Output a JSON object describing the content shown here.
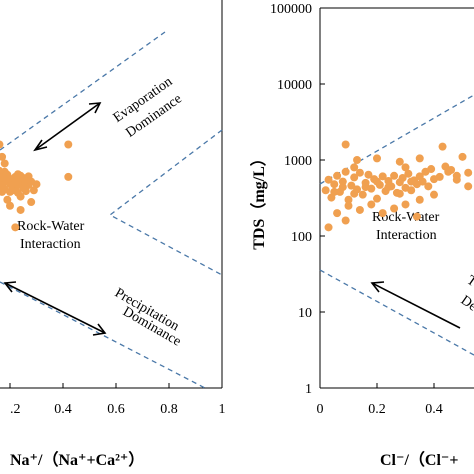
{
  "colors": {
    "points": "#f0a050",
    "boundary": "#4a78a8",
    "axis": "#000000"
  },
  "chart_data": [
    {
      "type": "scatter",
      "panel": "left",
      "xlabel": "Na⁺/（Na⁺+Ca²⁺）",
      "x_ticks": [
        ".2",
        "0.4",
        "0.6",
        "0.8",
        "1"
      ],
      "xlim": [
        0.1,
        1.0
      ],
      "y_scale": "log",
      "ylim": [
        1,
        100000
      ],
      "annotations": [
        "Evaporation",
        "Dominance",
        "Rock-Water",
        "Interaction",
        "Precipitation",
        "Dominance"
      ],
      "points": [
        [
          0.12,
          350
        ],
        [
          0.13,
          520
        ],
        [
          0.14,
          800
        ],
        [
          0.15,
          450
        ],
        [
          0.16,
          600
        ],
        [
          0.17,
          380
        ],
        [
          0.18,
          700
        ],
        [
          0.19,
          300
        ],
        [
          0.2,
          480
        ],
        [
          0.21,
          560
        ],
        [
          0.22,
          420
        ],
        [
          0.23,
          650
        ],
        [
          0.24,
          330
        ],
        [
          0.25,
          510
        ],
        [
          0.26,
          390
        ],
        [
          0.27,
          610
        ],
        [
          0.28,
          280
        ],
        [
          0.14,
          420
        ],
        [
          0.16,
          500
        ],
        [
          0.18,
          550
        ],
        [
          0.2,
          380
        ],
        [
          0.22,
          600
        ],
        [
          0.24,
          470
        ],
        [
          0.26,
          520
        ],
        [
          0.15,
          680
        ],
        [
          0.17,
          460
        ],
        [
          0.19,
          520
        ],
        [
          0.21,
          400
        ],
        [
          0.23,
          540
        ],
        [
          0.25,
          430
        ],
        [
          0.27,
          470
        ],
        [
          0.13,
          440
        ],
        [
          0.15,
          380
        ],
        [
          0.17,
          590
        ],
        [
          0.19,
          640
        ],
        [
          0.21,
          480
        ],
        [
          0.23,
          370
        ],
        [
          0.25,
          580
        ],
        [
          0.12,
          650
        ],
        [
          0.14,
          300
        ],
        [
          0.16,
          720
        ],
        [
          0.18,
          410
        ],
        [
          0.2,
          560
        ],
        [
          0.22,
          500
        ],
        [
          0.24,
          620
        ],
        [
          0.26,
          440
        ],
        [
          0.28,
          520
        ],
        [
          0.18,
          900
        ],
        [
          0.16,
          1600
        ],
        [
          0.2,
          250
        ],
        [
          0.24,
          220
        ],
        [
          0.17,
          1100
        ],
        [
          0.42,
          1600
        ],
        [
          0.42,
          600
        ],
        [
          0.29,
          400
        ],
        [
          0.3,
          480
        ],
        [
          0.22,
          130
        ]
      ]
    },
    {
      "type": "scatter",
      "panel": "right",
      "ylabel": "TDS（mg/L）",
      "xlabel": "Cl⁻/（Cl⁻+",
      "x_ticks": [
        "0",
        "0.2",
        "0.4"
      ],
      "xlim": [
        0,
        1.0
      ],
      "y_ticks": [
        "1",
        "10",
        "100",
        "1000",
        "10000",
        "100000"
      ],
      "y_scale": "log",
      "ylim": [
        1,
        100000
      ],
      "annotations": [
        "Rock-Water",
        "Interaction",
        "T",
        "De"
      ],
      "points": [
        [
          0.02,
          400
        ],
        [
          0.03,
          550
        ],
        [
          0.04,
          320
        ],
        [
          0.05,
          480
        ],
        [
          0.06,
          620
        ],
        [
          0.07,
          380
        ],
        [
          0.08,
          520
        ],
        [
          0.09,
          700
        ],
        [
          0.1,
          300
        ],
        [
          0.11,
          460
        ],
        [
          0.12,
          590
        ],
        [
          0.13,
          410
        ],
        [
          0.14,
          680
        ],
        [
          0.15,
          350
        ],
        [
          0.16,
          500
        ],
        [
          0.17,
          640
        ],
        [
          0.18,
          420
        ],
        [
          0.19,
          560
        ],
        [
          0.2,
          310
        ],
        [
          0.21,
          470
        ],
        [
          0.22,
          610
        ],
        [
          0.23,
          390
        ],
        [
          0.24,
          530
        ],
        [
          0.25,
          450
        ],
        [
          0.26,
          620
        ],
        [
          0.27,
          370
        ],
        [
          0.28,
          510
        ],
        [
          0.29,
          580
        ],
        [
          0.3,
          430
        ],
        [
          0.31,
          660
        ],
        [
          0.32,
          400
        ],
        [
          0.33,
          540
        ],
        [
          0.34,
          480
        ],
        [
          0.35,
          610
        ],
        [
          0.36,
          520
        ],
        [
          0.37,
          700
        ],
        [
          0.38,
          450
        ],
        [
          0.39,
          760
        ],
        [
          0.4,
          560
        ],
        [
          0.42,
          600
        ],
        [
          0.44,
          820
        ],
        [
          0.46,
          740
        ],
        [
          0.48,
          620
        ],
        [
          0.5,
          1100
        ],
        [
          0.52,
          680
        ],
        [
          0.55,
          560
        ],
        [
          0.58,
          470
        ],
        [
          0.45,
          700
        ],
        [
          0.05,
          380
        ],
        [
          0.08,
          440
        ],
        [
          0.12,
          360
        ],
        [
          0.16,
          440
        ],
        [
          0.2,
          520
        ],
        [
          0.24,
          440
        ],
        [
          0.28,
          360
        ],
        [
          0.32,
          520
        ],
        [
          0.06,
          200
        ],
        [
          0.1,
          250
        ],
        [
          0.14,
          220
        ],
        [
          0.18,
          260
        ],
        [
          0.22,
          200
        ],
        [
          0.26,
          230
        ],
        [
          0.3,
          260
        ],
        [
          0.34,
          180
        ],
        [
          0.09,
          1600
        ],
        [
          0.13,
          1000
        ],
        [
          0.2,
          1050
        ],
        [
          0.28,
          950
        ],
        [
          0.35,
          1050
        ],
        [
          0.43,
          1500
        ],
        [
          0.12,
          800
        ],
        [
          0.3,
          800
        ],
        [
          0.56,
          620
        ],
        [
          0.6,
          560
        ],
        [
          0.52,
          450
        ],
        [
          0.4,
          350
        ],
        [
          0.35,
          300
        ],
        [
          0.09,
          160
        ],
        [
          0.03,
          130
        ],
        [
          0.48,
          550
        ]
      ]
    }
  ]
}
